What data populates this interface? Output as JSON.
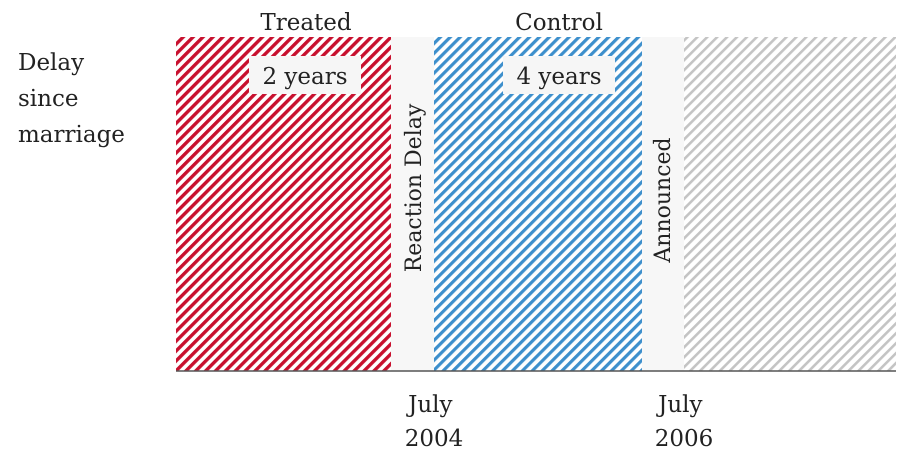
{
  "ylabel": [
    "Delay",
    "since",
    "marriage"
  ],
  "regions": {
    "treated": {
      "title": "Treated",
      "duration": "2 years",
      "color": "#c8102e"
    },
    "reaction_delay": {
      "label": "Reaction Delay"
    },
    "control": {
      "title": "Control",
      "duration": "4 years",
      "color": "#2e86c1"
    },
    "announced": {
      "label": "Announced"
    },
    "after": {
      "color": "#b5b5b5"
    }
  },
  "axis": {
    "ticks": [
      {
        "line1": "July",
        "line2": "2004"
      },
      {
        "line1": "July",
        "line2": "2006"
      }
    ]
  }
}
